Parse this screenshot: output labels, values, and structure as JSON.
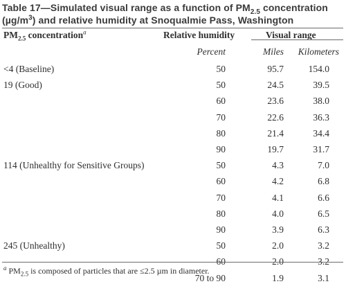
{
  "caption": {
    "part1": "Table 17—Simulated visual range as a function of PM",
    "sub": "2.5",
    "part2": " concentration",
    "line2a": "(µg/m",
    "sup": "3",
    "line2b": ") and relative humidity at Snoqualmie Pass, Washington"
  },
  "headers": {
    "pm_main": "PM",
    "pm_sub": "2.5",
    "pm_rest": " concentration",
    "pm_note": "a",
    "humidity": "Relative humidity",
    "visual_range": "Visual range"
  },
  "units": {
    "humidity": "Percent",
    "miles": "Miles",
    "km": "Kilometers"
  },
  "rows": [
    {
      "label": "<4 (Baseline)",
      "humidity": "50",
      "miles": "95.7",
      "km": "154.0"
    },
    {
      "label": "19 (Good)",
      "humidity": "50",
      "miles": "24.5",
      "km": "39.5"
    },
    {
      "label": "",
      "humidity": "60",
      "miles": "23.6",
      "km": "38.0"
    },
    {
      "label": "",
      "humidity": "70",
      "miles": "22.6",
      "km": "36.3"
    },
    {
      "label": "",
      "humidity": "80",
      "miles": "21.4",
      "km": "34.4"
    },
    {
      "label": "",
      "humidity": "90",
      "miles": "19.7",
      "km": "31.7"
    },
    {
      "label": "114 (Unhealthy for Sensitive Groups)",
      "humidity": "50",
      "miles": "4.3",
      "km": "7.0"
    },
    {
      "label": "",
      "humidity": "60",
      "miles": "4.2",
      "km": "6.8"
    },
    {
      "label": "",
      "humidity": "70",
      "miles": "4.1",
      "km": "6.6"
    },
    {
      "label": "",
      "humidity": "80",
      "miles": "4.0",
      "km": "6.5"
    },
    {
      "label": "",
      "humidity": "90",
      "miles": "3.9",
      "km": "6.3"
    },
    {
      "label": "245 (Unhealthy)",
      "humidity": "50",
      "miles": "2.0",
      "km": "3.2"
    },
    {
      "label": "",
      "humidity": "60",
      "miles": "2.0",
      "km": "3.2"
    },
    {
      "label": "",
      "humidity": "70 to 90",
      "miles": "1.9",
      "km": "3.1"
    }
  ],
  "footnote": {
    "mark": "a",
    "main": " PM",
    "sub": "2.5",
    "rest": " is composed of particles that are ≤2.5 µm in diameter."
  }
}
